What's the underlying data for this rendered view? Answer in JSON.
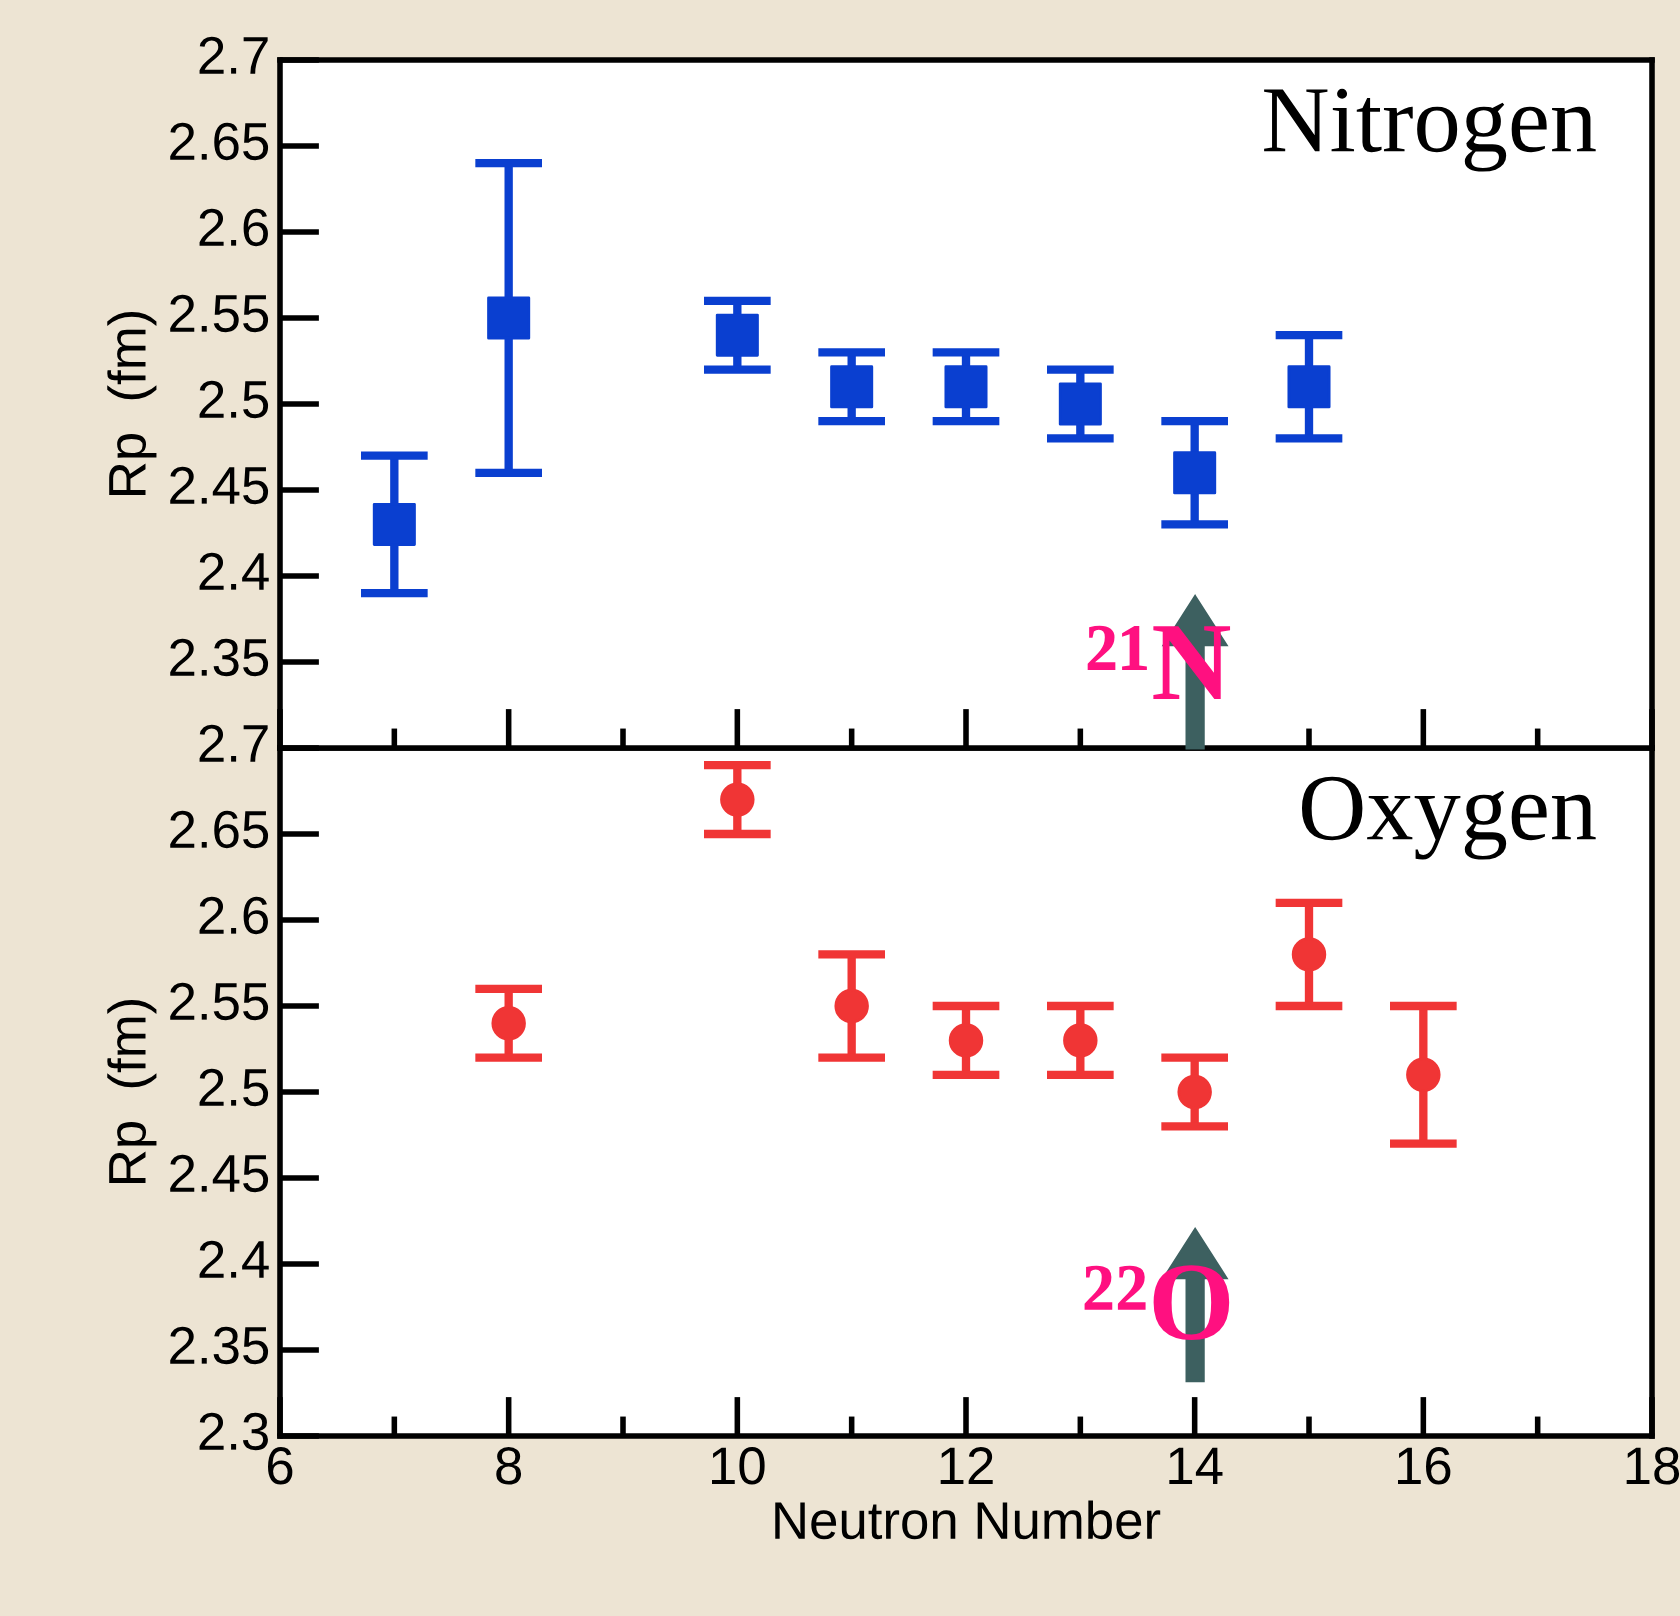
{
  "chart_data": [
    {
      "type": "scatter",
      "ylabel": "Rp  (fm)",
      "x": [
        7,
        8,
        10,
        11,
        12,
        13,
        14,
        15
      ],
      "series": [
        {
          "color": "#0a3fd0",
          "values": [
            2.43,
            2.55,
            2.54,
            2.51,
            2.51,
            2.5,
            2.46,
            2.51
          ],
          "errors": [
            0.04,
            0.09,
            0.02,
            0.02,
            0.02,
            0.02,
            0.03,
            0.03
          ]
        }
      ],
      "marker": "square",
      "xlim": [
        6,
        18
      ],
      "xticks": [
        6,
        8,
        10,
        12,
        14,
        16,
        18
      ],
      "ylim": [
        2.3,
        2.7
      ],
      "yticks": [
        {
          "value": 2.3,
          "label": null
        },
        2.35,
        2.4,
        2.45,
        2.5,
        2.55,
        2.6,
        2.65,
        2.7
      ],
      "tick_labels": "y",
      "grid": false,
      "legend": false,
      "annotations": [
        "Nitrogen",
        "²¹N"
      ]
    },
    {
      "type": "scatter",
      "ylabel": "Rp  (fm)",
      "xlabel": "Neutron Number",
      "x": [
        8,
        10,
        11,
        12,
        13,
        14,
        15,
        16
      ],
      "series": [
        {
          "color": "#f03535",
          "values": [
            2.54,
            2.67,
            2.55,
            2.53,
            2.53,
            2.5,
            2.58,
            2.51
          ],
          "errors": [
            0.02,
            0.02,
            0.03,
            0.02,
            0.02,
            0.02,
            0.03,
            0.04
          ]
        }
      ],
      "marker": "circle",
      "xlim": [
        6,
        18
      ],
      "xticks": [
        6,
        8,
        10,
        12,
        14,
        16,
        18
      ],
      "ylim": [
        2.3,
        2.7
      ],
      "yticks": [
        2.3,
        2.35,
        2.4,
        2.45,
        2.5,
        2.55,
        2.6,
        2.65,
        2.7
      ],
      "grid": false,
      "legend": false,
      "annotations": [
        "Oxygen",
        "²²O"
      ]
    }
  ]
}
